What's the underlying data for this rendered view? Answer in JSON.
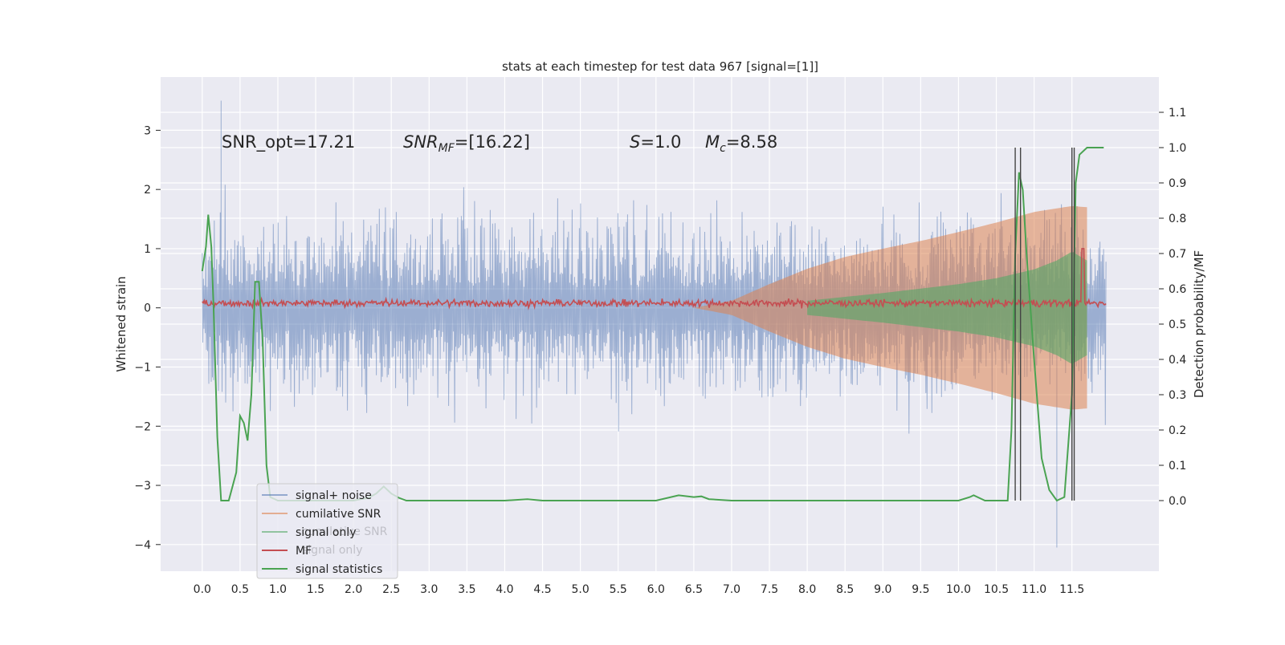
{
  "chart_data": {
    "type": "line",
    "title": "stats at each timestep for test data 967 [signal=[1]]",
    "xlabel": "",
    "ylabel": "Whitened strain",
    "y2label": "Detection probability/MF",
    "xlim": [
      -0.55,
      12.65
    ],
    "ylim": [
      -4.45,
      3.9
    ],
    "y2lim": [
      -0.2,
      1.2
    ],
    "x_ticks": [
      "0.0",
      "0.5",
      "1.0",
      "1.5",
      "2.0",
      "2.5",
      "3.0",
      "3.5",
      "4.0",
      "4.5",
      "5.0",
      "5.5",
      "6.0",
      "6.5",
      "7.0",
      "7.5",
      "8.0",
      "8.5",
      "9.0",
      "9.5",
      "10.0",
      "10.5",
      "11.0",
      "11.5"
    ],
    "y_ticks": [
      "3",
      "2",
      "1",
      "0",
      "−1",
      "−2",
      "−3",
      "−4"
    ],
    "y2_ticks": [
      "1.1",
      "1.0",
      "0.9",
      "0.8",
      "0.7",
      "0.6",
      "0.5",
      "0.4",
      "0.3",
      "0.2",
      "0.1",
      "0.0"
    ],
    "annotations": {
      "snr_opt": "SNR_opt=17.21",
      "snr_mf_sym": "SNR",
      "snr_mf_sub": "MF",
      "snr_mf_val": "=[16.22]",
      "s_sym": "S",
      "s_val": "=1.0",
      "mc_sym": "M",
      "mc_sub": "c",
      "mc_val": "=8.58"
    },
    "legend_position": "lower-left",
    "legend": [
      "signal+ noise",
      "cumilative SNR",
      "signal only",
      "MF",
      "signal statistics"
    ],
    "legend_ghost": [
      "cumilative SNR",
      "signal only"
    ],
    "series": [
      {
        "name": "signal+ noise",
        "color": "#4c72b0",
        "x_range": [
          0.0,
          11.95
        ],
        "envelope_approx": [
          -2.3,
          2.2
        ],
        "extremes": [
          [
            0.25,
            3.5
          ],
          [
            11.3,
            -4.05
          ]
        ]
      },
      {
        "name": "cumilative SNR",
        "color": "#dd8452",
        "x": [
          6.5,
          7.0,
          7.5,
          8.0,
          8.5,
          9.0,
          9.5,
          10.0,
          10.5,
          11.0,
          11.5,
          11.7
        ],
        "amplitude": [
          0.0,
          0.12,
          0.4,
          0.66,
          0.86,
          1.0,
          1.13,
          1.28,
          1.44,
          1.62,
          1.72,
          1.7
        ]
      },
      {
        "name": "signal only",
        "color": "#55a868",
        "x": [
          8.0,
          9.0,
          10.0,
          10.5,
          11.0,
          11.3,
          11.5,
          11.7
        ],
        "amplitude": [
          0.12,
          0.25,
          0.4,
          0.5,
          0.65,
          0.8,
          0.95,
          0.8
        ]
      },
      {
        "name": "MF",
        "color": "#c44e52",
        "x_range": [
          0.0,
          11.95
        ],
        "mean": 0.08,
        "jitter": 0.07,
        "peak": [
          11.65,
          1.0
        ]
      },
      {
        "name": "signal statistics",
        "color": "#4aa352",
        "axis": "y2",
        "x": [
          0.0,
          0.05,
          0.08,
          0.12,
          0.15,
          0.2,
          0.25,
          0.3,
          0.35,
          0.45,
          0.5,
          0.55,
          0.6,
          0.65,
          0.7,
          0.75,
          0.8,
          0.85,
          0.9,
          1.0,
          1.5,
          2.0,
          2.1,
          2.2,
          2.3,
          2.4,
          2.5,
          2.6,
          2.7,
          3.0,
          3.5,
          4.0,
          4.3,
          4.5,
          5.0,
          5.5,
          6.0,
          6.3,
          6.5,
          6.6,
          6.7,
          7.0,
          8.5,
          9.0,
          9.5,
          10.0,
          10.15,
          10.2,
          10.35,
          10.5,
          10.65,
          10.7,
          10.75,
          10.8,
          10.85,
          10.9,
          11.0,
          11.1,
          11.2,
          11.3,
          11.4,
          11.5,
          11.55,
          11.6,
          11.7,
          11.8,
          11.92
        ],
        "y": [
          0.65,
          0.72,
          0.81,
          0.72,
          0.55,
          0.18,
          0.0,
          0.0,
          0.0,
          0.08,
          0.24,
          0.22,
          0.17,
          0.3,
          0.62,
          0.62,
          0.45,
          0.1,
          0.01,
          0.0,
          0.0,
          0.0,
          0.004,
          0.008,
          0.02,
          0.04,
          0.02,
          0.008,
          0.0,
          0.0,
          0.0,
          0.0,
          0.004,
          0.0,
          0.0,
          0.0,
          0.0,
          0.015,
          0.01,
          0.012,
          0.004,
          0.0,
          0.0,
          0.0,
          0.0,
          0.0,
          0.01,
          0.015,
          0.0,
          0.0,
          0.0,
          0.2,
          0.7,
          0.93,
          0.88,
          0.7,
          0.4,
          0.12,
          0.03,
          0.0,
          0.01,
          0.3,
          0.9,
          0.98,
          1.0,
          1.0,
          1.0
        ]
      },
      {
        "name": "marker lines",
        "color": "#444444",
        "x": [
          10.75,
          10.82,
          11.5,
          11.53
        ]
      }
    ]
  }
}
